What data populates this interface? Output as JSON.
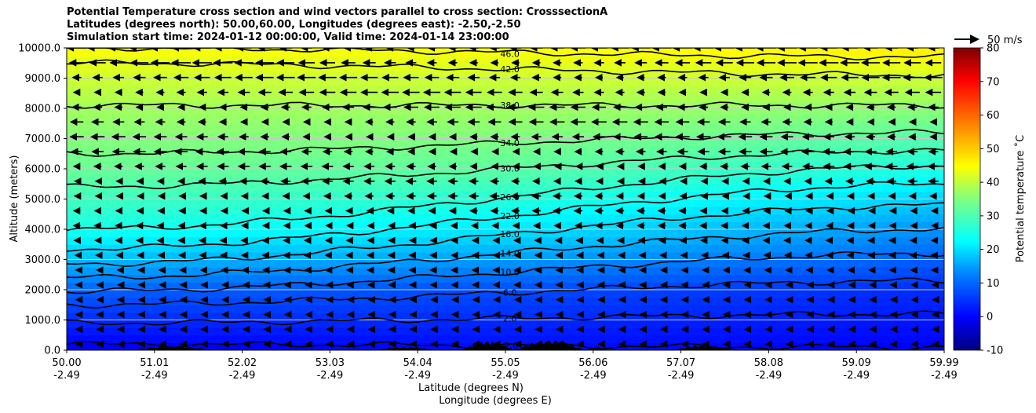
{
  "title_lines": [
    "Potential Temperature cross section and wind vectors parallel to cross section: CrosssectionA",
    "Latitudes (degrees north): 50.00,60.00, Longitudes (degrees east): -2.50,-2.50",
    "Simulation start time: 2024-01-12 00:00:00, Valid time: 2024-01-14 23:00:00"
  ],
  "chart_data": {
    "type": "heatmap",
    "subtype": "filled contour cross section with contour lines and wind vectors",
    "ylabel": "Altitude (meters)",
    "xlabel_lines": [
      "Latitude (degrees N)",
      "Longitude (degrees E)"
    ],
    "ylim": [
      0,
      10000
    ],
    "y_ticks": [
      0,
      1000,
      2000,
      3000,
      4000,
      5000,
      6000,
      7000,
      8000,
      9000,
      10000
    ],
    "y_tick_labels": [
      "0.0",
      "1000.0",
      "2000.0",
      "3000.0",
      "4000.0",
      "5000.0",
      "6000.0",
      "7000.0",
      "8000.0",
      "9000.0",
      "10000.0"
    ],
    "x_ticks": [
      {
        "lat": "50.00",
        "lon": "-2.49"
      },
      {
        "lat": "51.01",
        "lon": "-2.49"
      },
      {
        "lat": "52.02",
        "lon": "-2.49"
      },
      {
        "lat": "53.03",
        "lon": "-2.49"
      },
      {
        "lat": "54.04",
        "lon": "-2.49"
      },
      {
        "lat": "55.05",
        "lon": "-2.49"
      },
      {
        "lat": "56.06",
        "lon": "-2.49"
      },
      {
        "lat": "57.07",
        "lon": "-2.49"
      },
      {
        "lat": "58.08",
        "lon": "-2.49"
      },
      {
        "lat": "59.09",
        "lon": "-2.49"
      },
      {
        "lat": "59.99",
        "lon": "-2.49"
      }
    ],
    "grid": "horizontal",
    "colorbar": {
      "label": "Potential temperature $^\\circ$C",
      "label_display": "Potential temperature ˚C",
      "range": [
        -10,
        80
      ],
      "ticks": [
        -10,
        0,
        10,
        20,
        30,
        40,
        50,
        60,
        70,
        80
      ],
      "colormap": "jet"
    },
    "wind_key": {
      "label": "50 m/s",
      "speed": 50,
      "direction": "right"
    },
    "wind_direction": "mostly leftward (southward along section), stronger aloft",
    "contours": [
      {
        "level": -2.0,
        "label": "-2.0",
        "height_m_start": 200,
        "height_m_end": 100
      },
      {
        "level": 2.0,
        "label": "2.0",
        "height_m_start": 900,
        "height_m_end": 1200
      },
      {
        "level": 6.0,
        "label": "6.0",
        "height_m_start": 1500,
        "height_m_end": 2300
      },
      {
        "level": 10.0,
        "label": "10.0",
        "height_m_start": 1950,
        "height_m_end": 3200
      },
      {
        "level": 14.0,
        "label": "14.0",
        "height_m_start": 2400,
        "height_m_end": 4000
      },
      {
        "level": 18.0,
        "label": "18.0",
        "height_m_start": 2850,
        "height_m_end": 4800
      },
      {
        "level": 22.0,
        "label": "22.0",
        "height_m_start": 3350,
        "height_m_end": 5500
      },
      {
        "level": 26.0,
        "label": "26.0",
        "height_m_start": 4000,
        "height_m_end": 6100
      },
      {
        "level": 30.0,
        "label": "30.0",
        "height_m_start": 5400,
        "height_m_end": 6600
      },
      {
        "level": 34.0,
        "label": "34.0",
        "height_m_start": 6500,
        "height_m_end": 7200
      },
      {
        "level": 38.0,
        "label": "38.0",
        "height_m_start": 8100,
        "height_m_end": 8100
      },
      {
        "level": 42.0,
        "label": "42.0",
        "height_m_start": 9500,
        "height_m_end": 9100
      },
      {
        "level": 46.0,
        "label": "46.0",
        "height_m_start": 10000,
        "height_m_end": 9700
      }
    ],
    "field_samples_celsius": {
      "x_fraction": [
        0,
        0.5,
        1
      ],
      "rows": [
        {
          "altitude_m": 0,
          "values": [
            0,
            2,
            1
          ]
        },
        {
          "altitude_m": 2000,
          "values": [
            10,
            8,
            5
          ]
        },
        {
          "altitude_m": 4000,
          "values": [
            26,
            22,
            14
          ]
        },
        {
          "altitude_m": 6000,
          "values": [
            33,
            32,
            26
          ]
        },
        {
          "altitude_m": 8000,
          "values": [
            38,
            38,
            36
          ]
        },
        {
          "altitude_m": 10000,
          "values": [
            46,
            46,
            48
          ]
        }
      ]
    }
  }
}
